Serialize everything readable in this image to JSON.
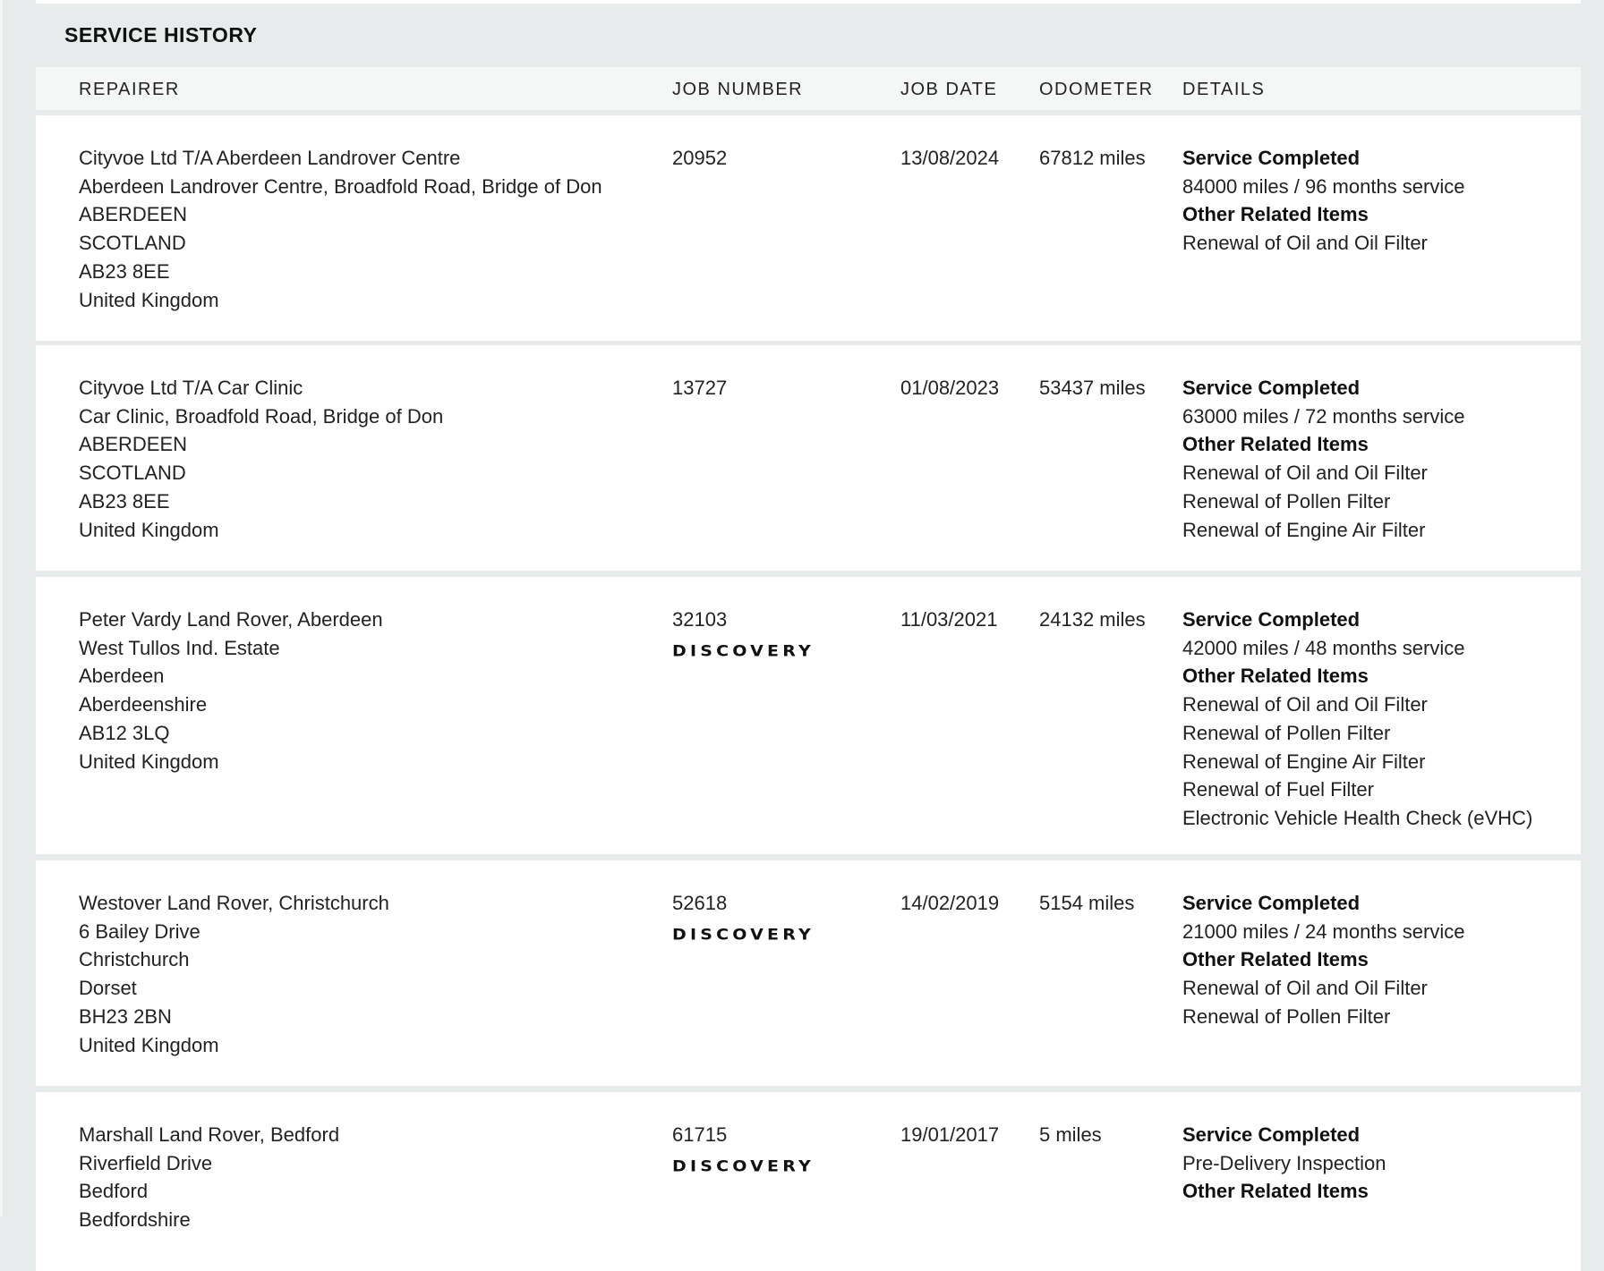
{
  "title": "SERVICE HISTORY",
  "columns": [
    "REPAIRER",
    "JOB NUMBER",
    "JOB DATE",
    "ODOMETER",
    "DETAILS"
  ],
  "rows": [
    {
      "repairer": [
        "Cityvoe Ltd T/A Aberdeen Landrover Centre",
        "Aberdeen Landrover Centre, Broadfold Road, Bridge of Don",
        "ABERDEEN",
        "SCOTLAND",
        "AB23 8EE",
        "United Kingdom"
      ],
      "job_number": "20952",
      "logo": "",
      "job_date": "13/08/2024",
      "odometer": "67812 miles",
      "details": [
        {
          "text": "Service Completed",
          "bold": true
        },
        {
          "text": "84000 miles / 96 months service"
        },
        {
          "text": "Other Related Items",
          "bold": true
        },
        {
          "text": "Renewal of Oil and Oil Filter"
        }
      ]
    },
    {
      "repairer": [
        "Cityvoe Ltd T/A Car Clinic",
        "Car Clinic, Broadfold Road, Bridge of Don",
        "ABERDEEN",
        "SCOTLAND",
        "AB23 8EE",
        "United Kingdom"
      ],
      "job_number": "13727",
      "logo": "",
      "job_date": "01/08/2023",
      "odometer": "53437 miles",
      "details": [
        {
          "text": "Service Completed",
          "bold": true
        },
        {
          "text": "63000 miles / 72 months service"
        },
        {
          "text": "Other Related Items",
          "bold": true
        },
        {
          "text": "Renewal of Oil and Oil Filter"
        },
        {
          "text": "Renewal of Pollen Filter"
        },
        {
          "text": "Renewal of Engine Air Filter"
        }
      ]
    },
    {
      "repairer": [
        "Peter Vardy Land Rover, Aberdeen",
        "West Tullos Ind. Estate",
        "Aberdeen",
        "Aberdeenshire",
        "AB12 3LQ",
        "United Kingdom"
      ],
      "job_number": "32103",
      "logo": "DISCOVERY",
      "job_date": "11/03/2021",
      "odometer": "24132 miles",
      "details": [
        {
          "text": "Service Completed",
          "bold": true
        },
        {
          "text": "42000 miles / 48 months service"
        },
        {
          "text": "Other Related Items",
          "bold": true
        },
        {
          "text": "Renewal of Oil and Oil Filter"
        },
        {
          "text": "Renewal of Pollen Filter"
        },
        {
          "text": "Renewal of Engine Air Filter"
        },
        {
          "text": "Renewal of Fuel Filter"
        },
        {
          "text": "Electronic Vehicle Health Check (eVHC)"
        }
      ]
    },
    {
      "repairer": [
        "Westover Land Rover, Christchurch",
        "6 Bailey Drive",
        "Christchurch",
        "Dorset",
        "BH23 2BN",
        "United Kingdom"
      ],
      "job_number": "52618",
      "logo": "DISCOVERY",
      "job_date": "14/02/2019",
      "odometer": "5154 miles",
      "details": [
        {
          "text": "Service Completed",
          "bold": true
        },
        {
          "text": "21000 miles / 24 months service"
        },
        {
          "text": "Other Related Items",
          "bold": true
        },
        {
          "text": "Renewal of Oil and Oil Filter"
        },
        {
          "text": "Renewal of Pollen Filter"
        }
      ]
    },
    {
      "repairer": [
        "Marshall Land Rover, Bedford",
        "Riverfield Drive",
        "Bedford",
        "Bedfordshire"
      ],
      "job_number": "61715",
      "logo": "DISCOVERY",
      "job_date": "19/01/2017",
      "odometer": "5 miles",
      "details": [
        {
          "text": "Service Completed",
          "bold": true
        },
        {
          "text": "Pre-Delivery Inspection"
        },
        {
          "text": "Other Related Items",
          "bold": true
        }
      ]
    }
  ]
}
